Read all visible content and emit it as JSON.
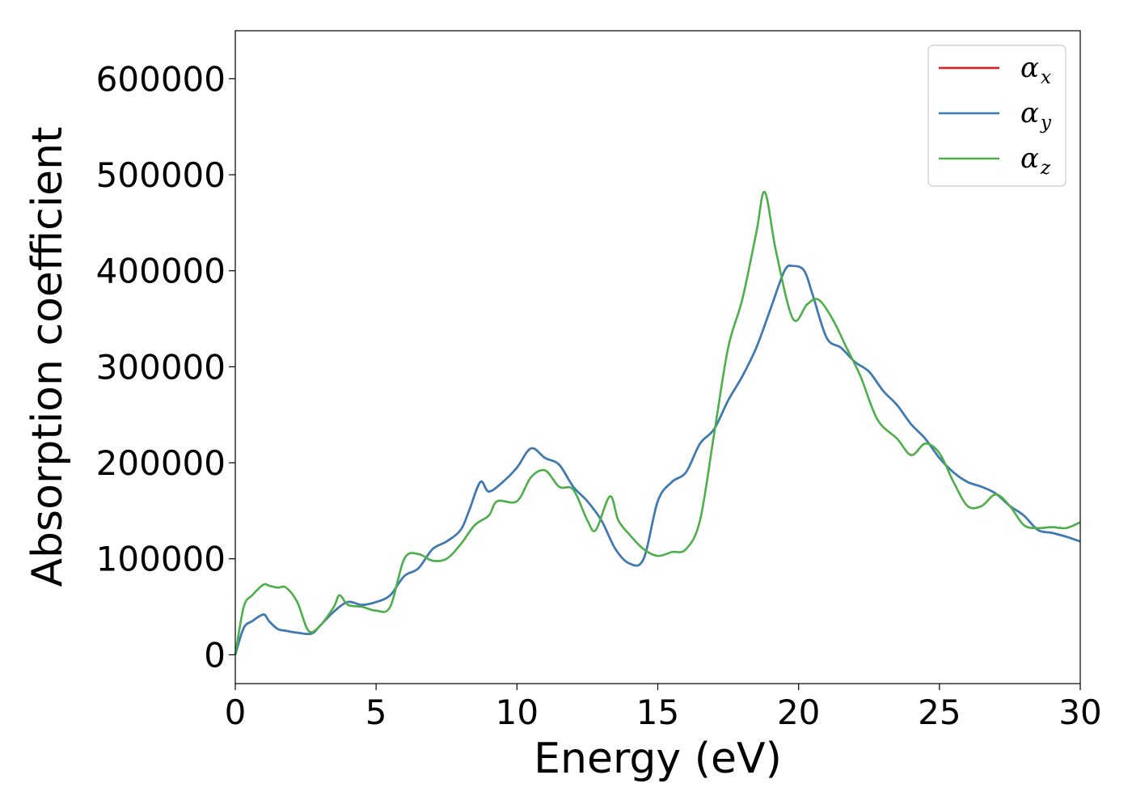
{
  "chart_data": {
    "type": "line",
    "xlabel": "Energy (eV)",
    "ylabel": "Absorption coefficient",
    "xlim": [
      0,
      30
    ],
    "ylim": [
      -30000,
      650000
    ],
    "xticks": [
      0,
      5,
      10,
      15,
      20,
      25,
      30
    ],
    "yticks": [
      0,
      100000,
      200000,
      300000,
      400000,
      500000,
      600000
    ],
    "grid": false,
    "legend_position": "top-right",
    "series": [
      {
        "name": "α_x",
        "legend_main": "α",
        "legend_sub": "x",
        "color": "#e41a1c",
        "x": [
          0,
          0.3,
          0.6,
          1.0,
          1.2,
          1.5,
          1.8,
          2.2,
          2.7,
          3.0,
          3.5,
          4.0,
          4.5,
          5.0,
          5.5,
          6.0,
          6.5,
          7.0,
          7.5,
          8.0,
          8.3,
          8.7,
          9.0,
          9.5,
          10.0,
          10.5,
          11.0,
          11.5,
          12.0,
          12.5,
          13.0,
          13.5,
          14.0,
          14.5,
          15.0,
          15.5,
          16.0,
          16.5,
          17.0,
          17.5,
          18.0,
          18.5,
          19.0,
          19.5,
          19.8,
          20.2,
          20.5,
          21.0,
          21.5,
          22.0,
          22.5,
          23.0,
          23.5,
          24.0,
          24.5,
          25.0,
          25.5,
          26.0,
          26.5,
          27.0,
          27.5,
          28.0,
          28.5,
          29.0,
          29.5,
          30.0
        ],
        "values": [
          0,
          28000,
          35000,
          42000,
          35000,
          27000,
          25000,
          23000,
          22000,
          30000,
          45000,
          55000,
          52000,
          55000,
          62000,
          82000,
          90000,
          110000,
          118000,
          130000,
          150000,
          180000,
          170000,
          180000,
          195000,
          215000,
          205000,
          198000,
          175000,
          160000,
          140000,
          110000,
          95000,
          100000,
          160000,
          180000,
          190000,
          220000,
          235000,
          265000,
          290000,
          320000,
          360000,
          400000,
          405000,
          400000,
          375000,
          330000,
          320000,
          305000,
          295000,
          275000,
          260000,
          240000,
          225000,
          205000,
          190000,
          180000,
          175000,
          168000,
          155000,
          145000,
          130000,
          127000,
          123000,
          118000
        ]
      },
      {
        "name": "α_y",
        "legend_main": "α",
        "legend_sub": "y",
        "color": "#377eb8",
        "x": [
          0,
          0.3,
          0.6,
          1.0,
          1.2,
          1.5,
          1.8,
          2.2,
          2.7,
          3.0,
          3.5,
          4.0,
          4.5,
          5.0,
          5.5,
          6.0,
          6.5,
          7.0,
          7.5,
          8.0,
          8.3,
          8.7,
          9.0,
          9.5,
          10.0,
          10.5,
          11.0,
          11.5,
          12.0,
          12.5,
          13.0,
          13.5,
          14.0,
          14.5,
          15.0,
          15.5,
          16.0,
          16.5,
          17.0,
          17.5,
          18.0,
          18.5,
          19.0,
          19.5,
          19.8,
          20.2,
          20.5,
          21.0,
          21.5,
          22.0,
          22.5,
          23.0,
          23.5,
          24.0,
          24.5,
          25.0,
          25.5,
          26.0,
          26.5,
          27.0,
          27.5,
          28.0,
          28.5,
          29.0,
          29.5,
          30.0
        ],
        "values": [
          0,
          28000,
          35000,
          42000,
          35000,
          27000,
          25000,
          23000,
          22000,
          30000,
          45000,
          55000,
          52000,
          55000,
          62000,
          82000,
          90000,
          110000,
          118000,
          130000,
          150000,
          180000,
          170000,
          180000,
          195000,
          215000,
          205000,
          198000,
          175000,
          160000,
          140000,
          110000,
          95000,
          100000,
          160000,
          180000,
          190000,
          220000,
          235000,
          265000,
          290000,
          320000,
          360000,
          400000,
          405000,
          400000,
          375000,
          330000,
          320000,
          305000,
          295000,
          275000,
          260000,
          240000,
          225000,
          205000,
          190000,
          180000,
          175000,
          168000,
          155000,
          145000,
          130000,
          127000,
          123000,
          118000
        ]
      },
      {
        "name": "α_z",
        "legend_main": "α",
        "legend_sub": "z",
        "color": "#4daf4a",
        "x": [
          0,
          0.3,
          0.6,
          1.0,
          1.2,
          1.5,
          1.8,
          2.2,
          2.6,
          3.0,
          3.5,
          3.7,
          4.0,
          4.5,
          5.0,
          5.5,
          6.0,
          6.5,
          7.0,
          7.5,
          8.0,
          8.5,
          9.0,
          9.3,
          10.0,
          10.5,
          11.0,
          11.5,
          12.0,
          12.5,
          12.8,
          13.3,
          13.6,
          14.0,
          14.5,
          15.0,
          15.5,
          16.0,
          16.5,
          17.0,
          17.5,
          18.0,
          18.5,
          18.8,
          19.2,
          19.8,
          20.3,
          20.7,
          21.2,
          21.7,
          22.2,
          22.8,
          23.5,
          24.0,
          24.5,
          25.0,
          25.5,
          26.0,
          26.5,
          27.0,
          27.5,
          28.0,
          28.5,
          29.0,
          29.5,
          30.0
        ],
        "values": [
          0,
          50000,
          62000,
          73000,
          72000,
          70000,
          70000,
          55000,
          25000,
          30000,
          50000,
          62000,
          52000,
          50000,
          46000,
          50000,
          100000,
          105000,
          98000,
          100000,
          115000,
          135000,
          145000,
          160000,
          160000,
          185000,
          192000,
          175000,
          172000,
          140000,
          130000,
          165000,
          140000,
          125000,
          110000,
          103000,
          107000,
          110000,
          140000,
          230000,
          320000,
          370000,
          440000,
          482000,
          420000,
          350000,
          365000,
          370000,
          350000,
          320000,
          290000,
          245000,
          225000,
          208000,
          220000,
          210000,
          180000,
          155000,
          155000,
          167000,
          155000,
          135000,
          132000,
          133000,
          132000,
          138000
        ]
      }
    ]
  }
}
